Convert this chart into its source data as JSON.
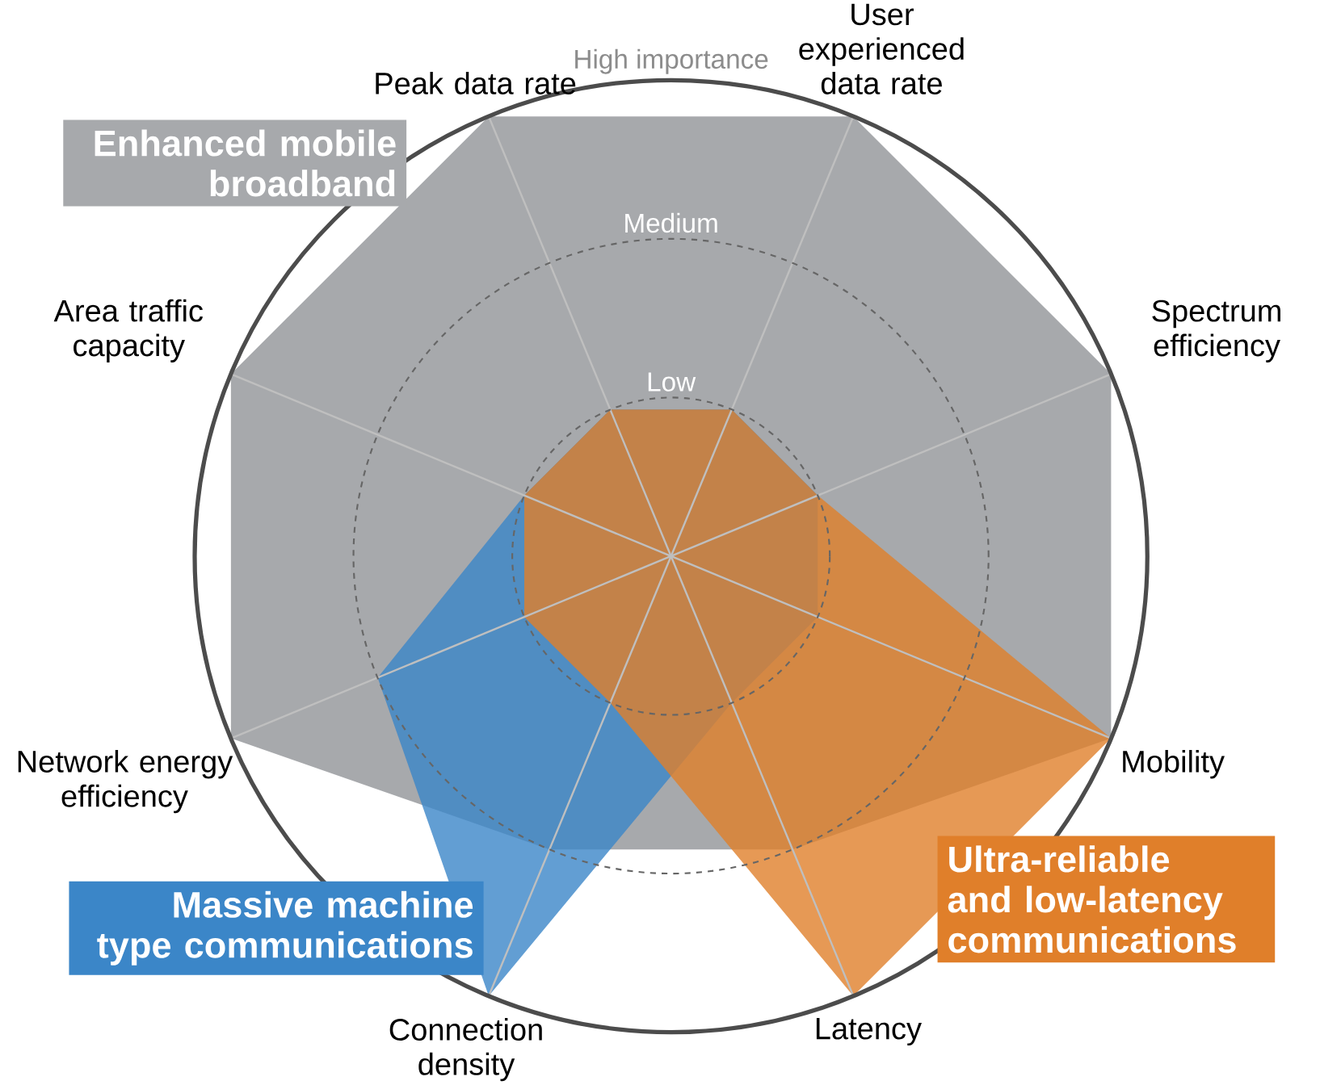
{
  "chart_data": {
    "type": "radar",
    "categories": [
      "Peak data rate",
      "User experienced data rate",
      "Spectrum efficiency",
      "Mobility",
      "Latency",
      "Connection density",
      "Network energy efficiency",
      "Area traffic capacity"
    ],
    "ylim": [
      0,
      3
    ],
    "yticks": [
      {
        "value": 1,
        "label": "Low"
      },
      {
        "value": 2,
        "label": "Medium"
      },
      {
        "value": 3,
        "label": "High importance"
      }
    ],
    "grid": true,
    "series": [
      {
        "name": "Enhanced mobile broadband",
        "color": "#a7a9ac",
        "values": [
          3,
          3,
          3,
          3,
          2,
          2,
          3,
          3
        ]
      },
      {
        "name": "Massive machine type communications",
        "color": "#3b86c8",
        "values": [
          1,
          1,
          1,
          1,
          1,
          3,
          2,
          1
        ]
      },
      {
        "name": "Ultra-reliable and low-latency communications",
        "color": "#e07f2a",
        "values": [
          1,
          1,
          1,
          3,
          3,
          1,
          1,
          1
        ]
      }
    ]
  }
}
